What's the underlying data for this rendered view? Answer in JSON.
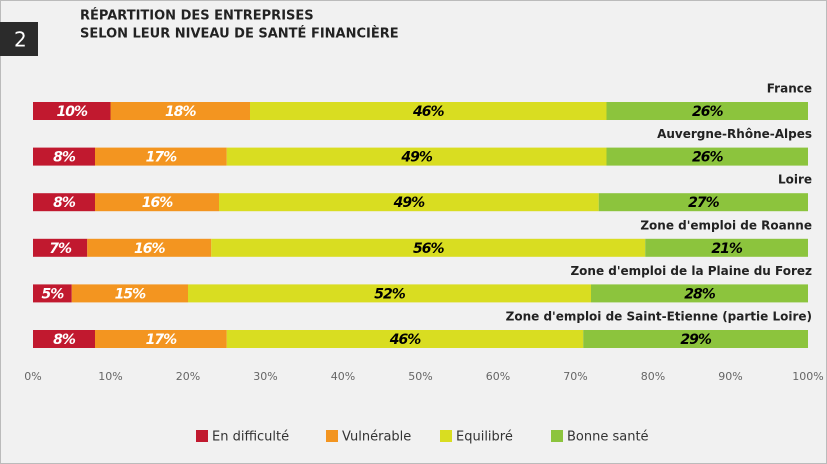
{
  "badge": "2",
  "chart_data": {
    "type": "stacked-barh",
    "title": [
      "RÉPARTITION DES ENTREPRISES",
      "SELON LEUR NIVEAU DE SANTÉ FINANCIÈRE"
    ],
    "categories": [
      "France",
      "Auvergne-Rhône-Alpes",
      "Loire",
      "Zone d'emploi de Roanne",
      "Zone d'emploi de la Plaine du Forez",
      "Zone d'emploi de Saint-Etienne (partie Loire)"
    ],
    "series": [
      {
        "name": "En difficulté",
        "color": "#c1192f",
        "label_color": "#ffffff",
        "values": [
          10,
          8,
          8,
          7,
          5,
          8
        ],
        "value_labels": [
          "10%",
          "8%",
          "8%",
          "7%",
          "5%",
          "8%"
        ]
      },
      {
        "name": "Vulnérable",
        "color": "#f39520",
        "label_color": "#ffffff",
        "values": [
          18,
          17,
          16,
          16,
          15,
          17
        ],
        "value_labels": [
          "18%",
          "17%",
          "16%",
          "16%",
          "15%",
          "17%"
        ]
      },
      {
        "name": "Equilibré",
        "color": "#d9dd21",
        "label_color": "#000000",
        "values": [
          46,
          49,
          49,
          56,
          52,
          46
        ],
        "value_labels": [
          "46%",
          "49%",
          "49%",
          "56%",
          "52%",
          "46%"
        ]
      },
      {
        "name": "Bonne santé",
        "color": "#8cc43d",
        "label_color": "#000000",
        "values": [
          26,
          26,
          27,
          21,
          28,
          29
        ],
        "value_labels": [
          "26%",
          "26%",
          "27%",
          "21%",
          "28%",
          "29%"
        ]
      }
    ],
    "xlim": [
      0,
      100
    ],
    "xticks": [
      {
        "value": 0,
        "label": "0%"
      },
      {
        "value": 10,
        "label": "10%"
      },
      {
        "value": 20,
        "label": "20%"
      },
      {
        "value": 30,
        "label": "30%"
      },
      {
        "value": 40,
        "label": "40%"
      },
      {
        "value": 50,
        "label": "50%"
      },
      {
        "value": 60,
        "label": "60%"
      },
      {
        "value": 70,
        "label": "70%"
      },
      {
        "value": 80,
        "label": "80%"
      },
      {
        "value": 90,
        "label": "90%"
      },
      {
        "value": 100,
        "label": "100%"
      }
    ],
    "legend": "bottom"
  }
}
